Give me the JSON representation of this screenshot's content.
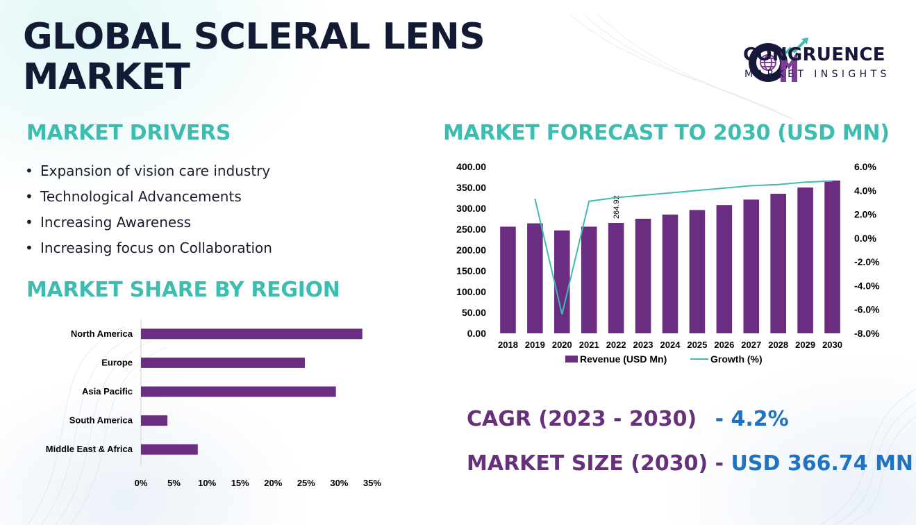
{
  "title_line1": "GLOBAL SCLERAL LENS",
  "title_line2": "MARKET",
  "logo": {
    "name": "CONGRUENCE",
    "tagline": "MARKET INSIGHTS",
    "mark": "CM"
  },
  "drivers": {
    "heading": "MARKET DRIVERS",
    "items": [
      "Expansion of vision care industry",
      "Technological Advancements",
      "Increasing Awareness",
      "Increasing focus on Collaboration"
    ]
  },
  "stats": {
    "cagr_label": "CAGR (2023 - 2030)",
    "cagr_value": "- 4.2%",
    "size_label": "MARKET SIZE (2030) -",
    "size_value": "USD 366.74 MN"
  },
  "colors": {
    "bar": "#6b2d82",
    "line": "#3cbdb0",
    "heading": "#3cbdb0",
    "title": "#131a33"
  },
  "chart_data": [
    {
      "type": "bar",
      "orientation": "horizontal",
      "title": "MARKET SHARE BY REGION",
      "categories": [
        "North America",
        "Europe",
        "Asia Pacific",
        "South America",
        "Middle East & Africa"
      ],
      "values": [
        33.5,
        24.8,
        29.5,
        4.0,
        8.6
      ],
      "xticks": [
        "0%",
        "5%",
        "10%",
        "15%",
        "20%",
        "25%",
        "30%",
        "35%"
      ],
      "xlim": [
        0,
        35
      ],
      "unit": "%"
    },
    {
      "type": "bar+line",
      "title": "MARKET FORECAST TO 2030 (USD MN)",
      "categories": [
        "2018",
        "2019",
        "2020",
        "2021",
        "2022",
        "2023",
        "2024",
        "2025",
        "2026",
        "2027",
        "2028",
        "2029",
        "2030"
      ],
      "series": [
        {
          "name": "Revenue (USD Mn)",
          "type": "bar",
          "axis": "left",
          "values": [
            256,
            264,
            247,
            256,
            264.92,
            275,
            285,
            296,
            308,
            321,
            335,
            350,
            366.74
          ]
        },
        {
          "name": "Growth (%)",
          "type": "line",
          "axis": "right",
          "values": [
            null,
            3.3,
            -6.4,
            3.1,
            3.4,
            3.6,
            3.8,
            4.0,
            4.2,
            4.4,
            4.5,
            4.7,
            4.8
          ]
        }
      ],
      "data_labels": [
        {
          "category": "2022",
          "text": "264.92"
        }
      ],
      "ylim_left": [
        0,
        400
      ],
      "yticks_left": [
        "0.00",
        "50.00",
        "100.00",
        "150.00",
        "200.00",
        "250.00",
        "300.00",
        "350.00",
        "400.00"
      ],
      "ylim_right": [
        -8,
        6
      ],
      "yticks_right": [
        "-8.0%",
        "-6.0%",
        "-4.0%",
        "-2.0%",
        "0.0%",
        "2.0%",
        "4.0%",
        "6.0%"
      ],
      "legend": "bottom"
    }
  ]
}
